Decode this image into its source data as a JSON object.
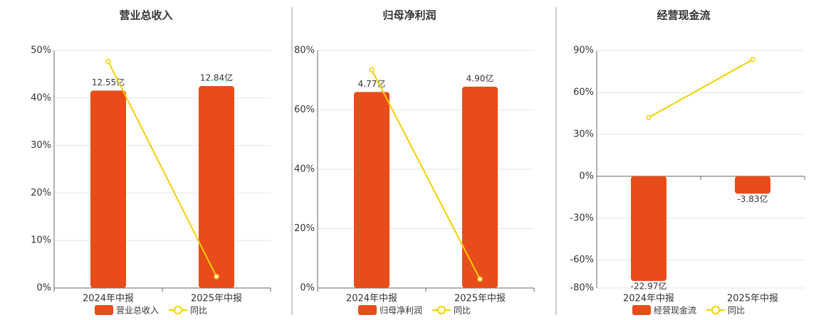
{
  "chart_data": [
    {
      "type": "combo",
      "title": "营业总收入",
      "categories": [
        "2024年中报",
        "2025年中报"
      ],
      "series": [
        {
          "name": "营业总收入",
          "type": "bar",
          "color": "#e84c1a",
          "axis": "y2",
          "values": [
            12.55,
            12.84
          ],
          "value_labels": [
            "12.55亿",
            "12.84亿"
          ]
        },
        {
          "name": "同比",
          "type": "line",
          "color": "#f5d000",
          "values": [
            47.7,
            2.4
          ]
        }
      ],
      "ylim": [
        0,
        50
      ],
      "yticks": [
        {
          "value": 0,
          "label": "0%"
        },
        {
          "value": 10,
          "label": "10%"
        },
        {
          "value": 20,
          "label": "20%"
        },
        {
          "value": 30,
          "label": "30%"
        },
        {
          "value": 40,
          "label": "40%"
        },
        {
          "value": 50,
          "label": "50%"
        }
      ],
      "y2lim": [
        0,
        15.1
      ],
      "grid": true
    },
    {
      "type": "combo",
      "title": "归母净利润",
      "categories": [
        "2024年中报",
        "2025年中报"
      ],
      "series": [
        {
          "name": "归母净利润",
          "type": "bar",
          "color": "#e84c1a",
          "axis": "y2",
          "values": [
            4.77,
            4.9
          ],
          "value_labels": [
            "4.77亿",
            "4.90亿"
          ]
        },
        {
          "name": "同比",
          "type": "line",
          "color": "#f5d000",
          "values": [
            73.5,
            3.0
          ]
        }
      ],
      "ylim": [
        0,
        80
      ],
      "yticks": [
        {
          "value": 0,
          "label": "0%"
        },
        {
          "value": 20,
          "label": "20%"
        },
        {
          "value": 40,
          "label": "40%"
        },
        {
          "value": 60,
          "label": "60%"
        },
        {
          "value": 80,
          "label": "80%"
        }
      ],
      "y2lim": [
        0,
        5.78
      ],
      "grid": true
    },
    {
      "type": "combo",
      "title": "经营现金流",
      "categories": [
        "2024年中报",
        "2025年中报"
      ],
      "series": [
        {
          "name": "经营现金流",
          "type": "bar",
          "color": "#e84c1a",
          "axis": "y2",
          "values": [
            -22.97,
            -3.83
          ],
          "value_labels": [
            "-22.97亿",
            "-3.83亿"
          ]
        },
        {
          "name": "同比",
          "type": "line",
          "color": "#f5d000",
          "values": [
            42,
            83.5
          ]
        }
      ],
      "ylim": [
        -80,
        90
      ],
      "yticks": [
        {
          "value": -80,
          "label": "-80%"
        },
        {
          "value": -60,
          "label": "-60%"
        },
        {
          "value": -30,
          "label": "-30%"
        },
        {
          "value": 0,
          "label": "0%"
        },
        {
          "value": 30,
          "label": "30%"
        },
        {
          "value": 60,
          "label": "60%"
        },
        {
          "value": 90,
          "label": "90%"
        }
      ],
      "y2lim": [
        -24.5,
        27.56
      ],
      "grid": true
    }
  ]
}
